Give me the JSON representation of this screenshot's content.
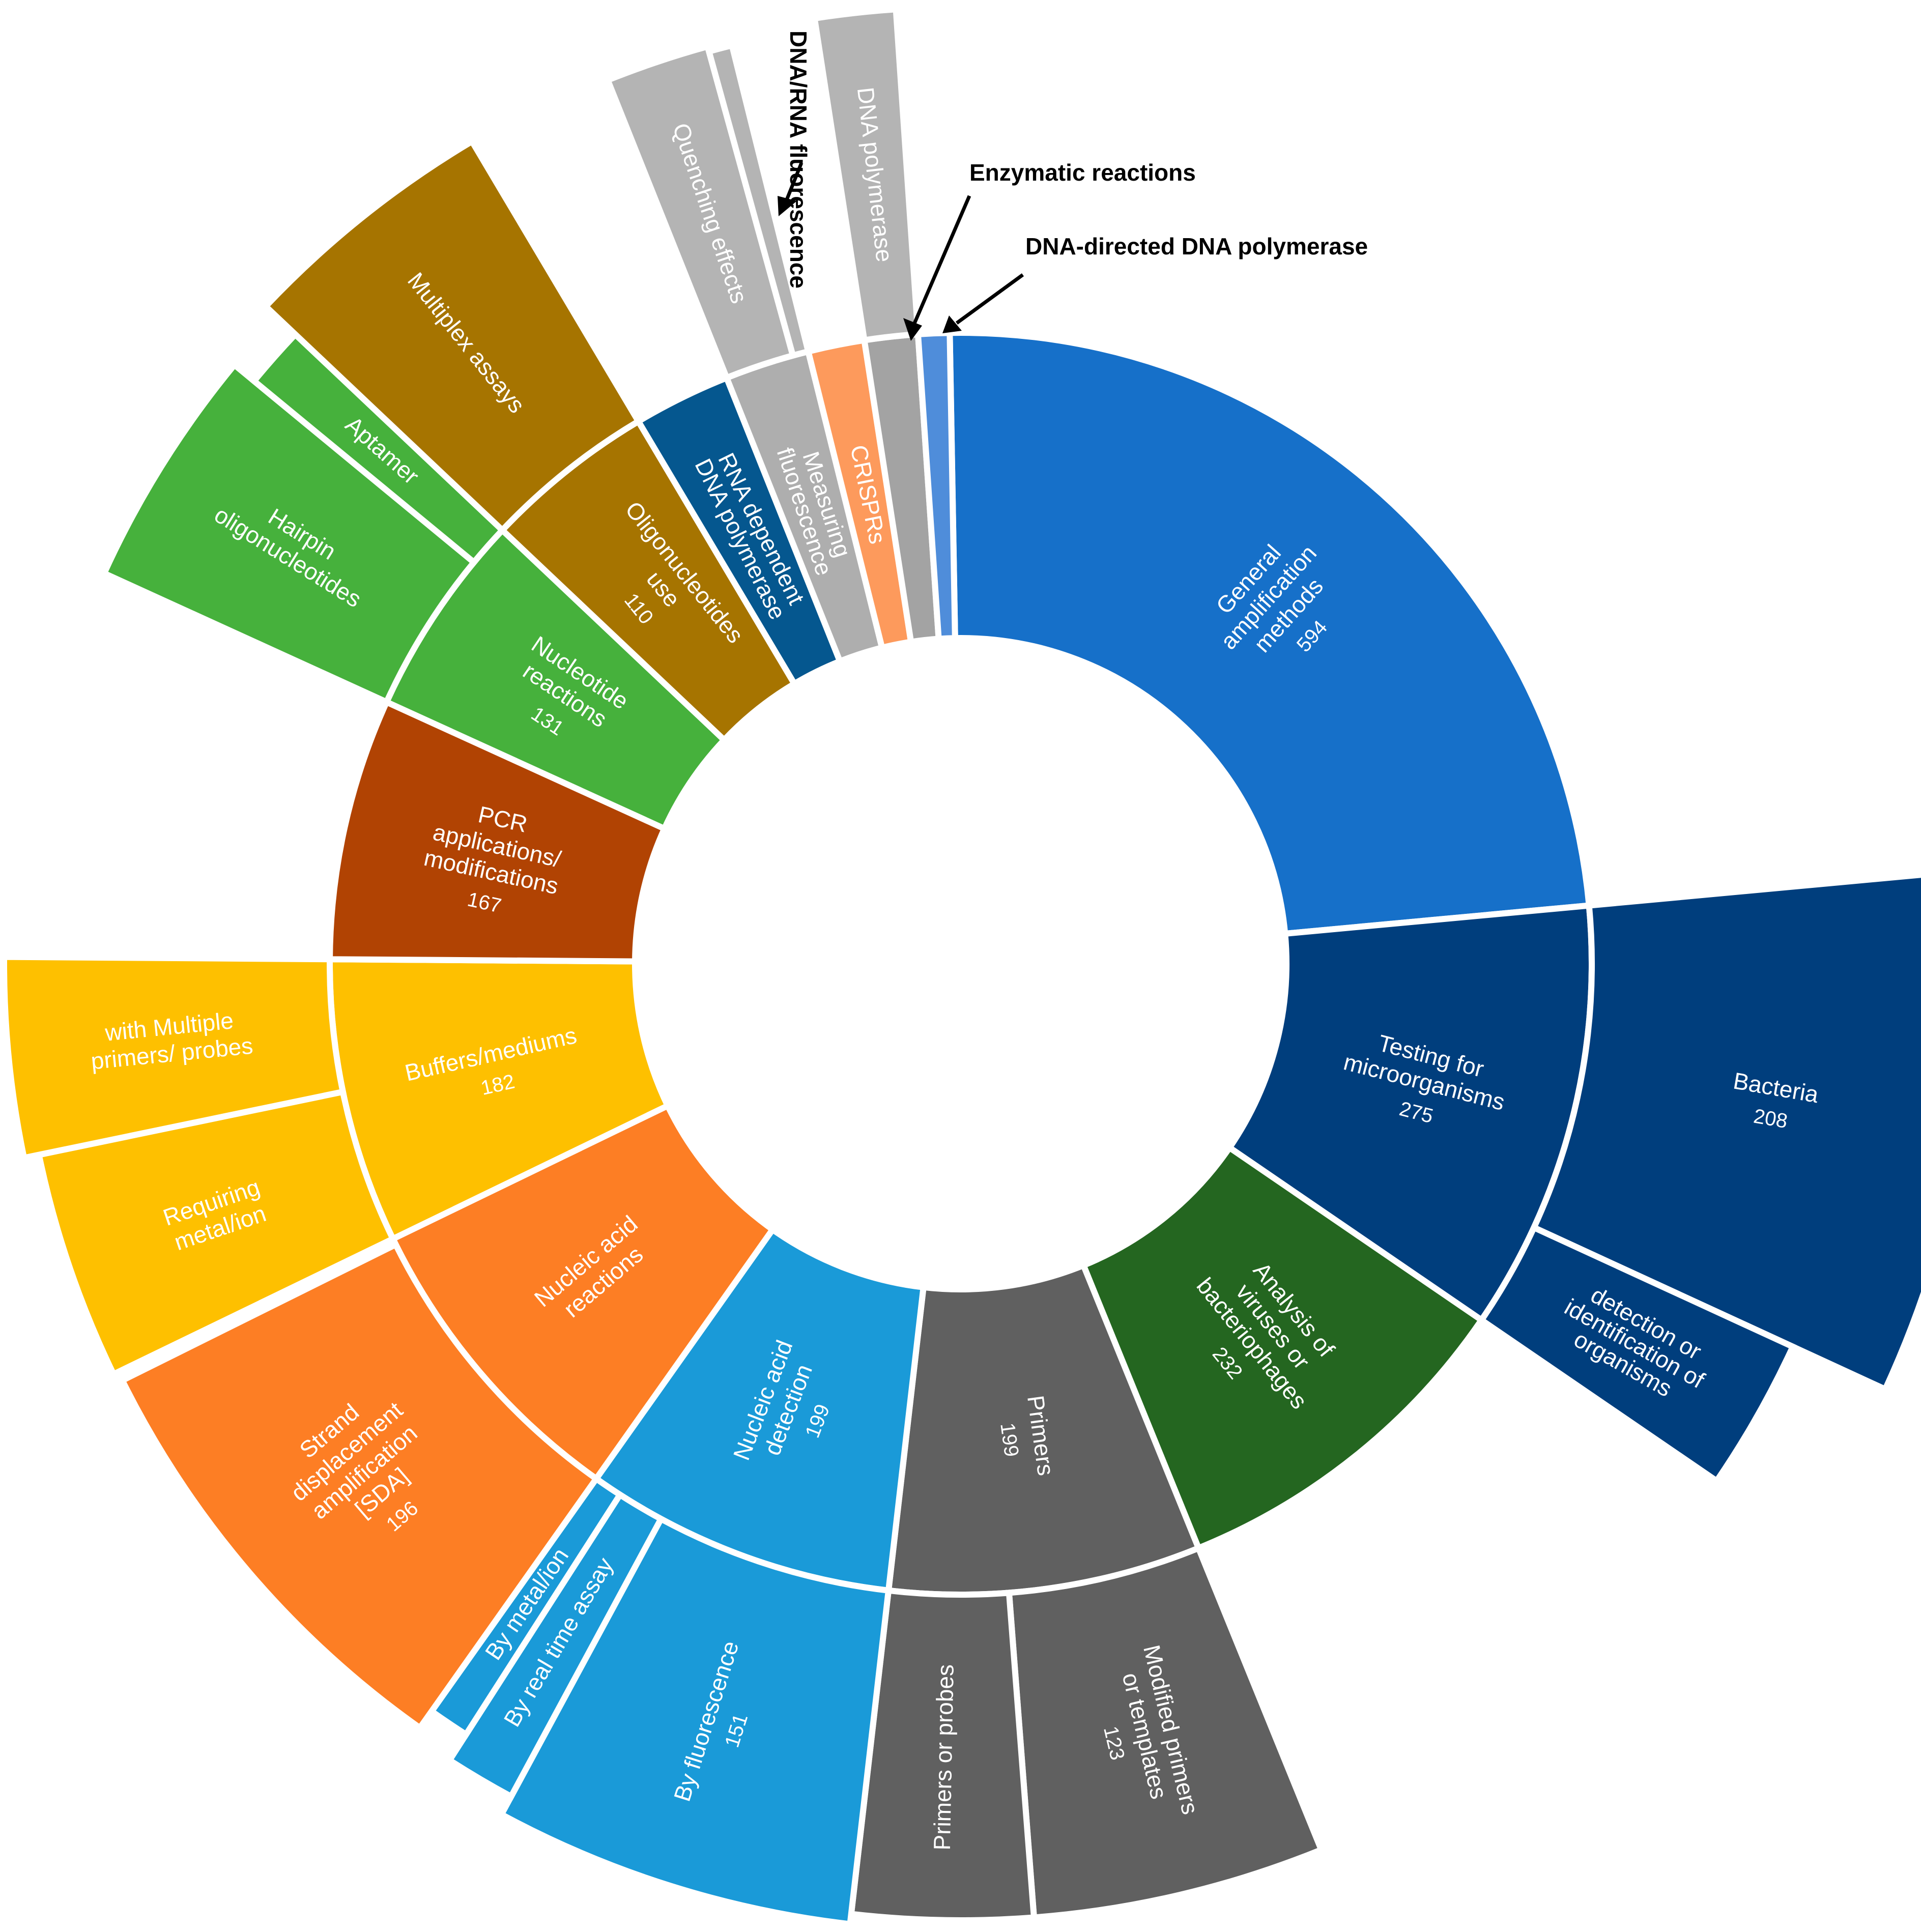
{
  "chart_data": {
    "type": "sunburst",
    "title": "",
    "colors": {
      "general": "#1670c9",
      "testing": "#003e7d",
      "analysis": "#246620",
      "primers": "#606060",
      "nad": "#1a9ad8",
      "nar": "#fd7e24",
      "buffers": "#fec000",
      "pcr": "#b14303",
      "nucleotide": "#46b13c",
      "oligo": "#a67400",
      "rnadp": "#05578f",
      "fluor": "#aeaeae",
      "crispr": "#fd9a5c",
      "enzymatic": "#a3a3a3",
      "dnadir": "#4f8dda"
    },
    "inner": [
      {
        "key": "general",
        "label": "General amplification methods",
        "value": 594,
        "value_label": "594",
        "text_color": "#ffffff"
      },
      {
        "key": "testing",
        "label": "Testing for microorganisms",
        "value": 275,
        "value_label": "275",
        "text_color": "#ffffff"
      },
      {
        "key": "analysis",
        "label": "Analysis of viruses or bacteriophages",
        "value": 232,
        "value_label": "232",
        "text_color": "#ffffff"
      },
      {
        "key": "primers",
        "label": "Primers",
        "value": 199,
        "value_label": "199",
        "text_color": "#ffffff"
      },
      {
        "key": "nad",
        "label": "Nucleic acid detection",
        "value": 199,
        "value_label": "199",
        "text_color": "#ffffff"
      },
      {
        "key": "nar",
        "label": "Nucleic acid reactions",
        "value": 200,
        "value_label": "",
        "text_color": "#ffffff"
      },
      {
        "key": "buffers",
        "label": "Buffers/mediums",
        "value": 182,
        "value_label": "182",
        "text_color": "#ffffff"
      },
      {
        "key": "pcr",
        "label": "PCR applications/ modifications",
        "value": 167,
        "value_label": "167",
        "text_color": "#ffffff"
      },
      {
        "key": "nucleotide",
        "label": "Nucleotide reactions",
        "value": 131,
        "value_label": "131",
        "text_color": "#ffffff"
      },
      {
        "key": "oligo",
        "label": "Oligonucleotides use",
        "value": 110,
        "value_label": "110",
        "text_color": "#ffffff"
      },
      {
        "key": "rnadp",
        "label": "RNA dependent DNA polymerase",
        "value": 62,
        "value_label": "",
        "text_color": "#ffffff"
      },
      {
        "key": "fluor",
        "label": "Measuring fluorescence",
        "value": 54,
        "value_label": "",
        "text_color": "#ffffff"
      },
      {
        "key": "crispr",
        "label": "CRISPRs",
        "value": 36,
        "value_label": "",
        "text_color": "#ffffff"
      },
      {
        "key": "enzymatic",
        "label": "",
        "value": 34,
        "value_label": "",
        "text_color": "#ffffff"
      },
      {
        "key": "dnadir",
        "label": "",
        "value": 20,
        "value_label": "",
        "text_color": "#ffffff"
      }
    ],
    "outer": [
      {
        "parent": "testing",
        "label": "Bacteria",
        "value": 208,
        "value_label": "208",
        "text_color": "#ffffff"
      },
      {
        "parent": "testing",
        "label": "detection or identification of organisms",
        "value": 67,
        "value_label": "",
        "text_color": "#ffffff"
      },
      {
        "parent": "primers",
        "label": "Modified primers or templates",
        "value": 123,
        "value_label": "123",
        "text_color": "#ffffff"
      },
      {
        "parent": "primers",
        "label": "Primers or probes",
        "value": 76,
        "value_label": "",
        "text_color": "#ffffff"
      },
      {
        "parent": "nad",
        "label": "By fluorescence",
        "value": 151,
        "value_label": "151",
        "text_color": "#ffffff"
      },
      {
        "parent": "nad",
        "label": "By real time assay",
        "value": 30,
        "value_label": "",
        "text_color": "#ffffff"
      },
      {
        "parent": "nad",
        "label": "By metal/ion",
        "value": 18,
        "value_label": "",
        "text_color": "#ffffff"
      },
      {
        "parent": "nar",
        "label": "Strand displacement amplification [SDA]",
        "value": 196,
        "value_label": "196",
        "text_color": "#ffffff"
      },
      {
        "parent": "buffers",
        "label": "Requiring metal/ion",
        "value": 98,
        "value_label": "",
        "text_color": "#ffffff"
      },
      {
        "parent": "buffers",
        "label": "with Multiple primers/ probes",
        "value": 84,
        "value_label": "",
        "text_color": "#ffffff"
      },
      {
        "parent": "nucleotide",
        "label": "Hairpin oligonucleotides",
        "value": 104,
        "value_label": "",
        "text_color": "#ffffff"
      },
      {
        "parent": "nucleotide",
        "label": "Aptamer",
        "value": 27,
        "value_label": "",
        "text_color": "#ffffff"
      },
      {
        "parent": "oligo",
        "label": "Multiplex assays",
        "value": 110,
        "value_label": "",
        "text_color": "#ffffff"
      },
      {
        "parent": "fluor",
        "label": "Quenching effects",
        "value": 44,
        "value_label": "",
        "text_color": "#ffffff"
      },
      {
        "parent": "fluor",
        "label": "",
        "value": 10,
        "value_label": "",
        "text_color": "#ffffff"
      },
      {
        "parent": "enzymatic",
        "label": "DNA polymerase",
        "value": 34,
        "value_label": "",
        "text_color": "#ffffff"
      }
    ],
    "annotations": [
      {
        "label": "DNA/RNA fluorescence"
      },
      {
        "label": "Enzymatic reactions"
      },
      {
        "label": "DNA-directed DNA polymerase"
      }
    ]
  }
}
